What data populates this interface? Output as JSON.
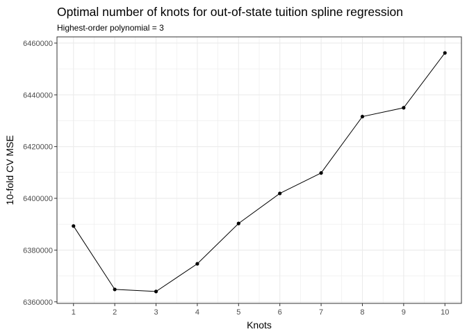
{
  "chart_data": {
    "type": "line",
    "title": "Optimal number of knots for out-of-state tuition spline regression",
    "subtitle": "Highest-order polynomial = 3",
    "xlabel": "Knots",
    "ylabel": "10-fold CV MSE",
    "x": [
      1,
      2,
      3,
      4,
      5,
      6,
      7,
      8,
      9,
      10
    ],
    "y": [
      6389300,
      6364800,
      6364000,
      6374700,
      6390300,
      6401900,
      6409800,
      6431600,
      6435000,
      6456200
    ],
    "xlim": [
      0.6,
      10.4
    ],
    "ylim": [
      6359400,
      6462400
    ],
    "xticks": [
      1,
      2,
      3,
      4,
      5,
      6,
      7,
      8,
      9,
      10
    ],
    "xtick_labels": [
      "1",
      "2",
      "3",
      "4",
      "5",
      "6",
      "7",
      "8",
      "9",
      "10"
    ],
    "yticks": [
      6360000,
      6380000,
      6400000,
      6420000,
      6440000,
      6460000
    ],
    "ytick_labels": [
      "6360000",
      "6380000",
      "6400000",
      "6420000",
      "6440000",
      "6460000"
    ],
    "grid": true,
    "legend": "none",
    "line_color": "#000000",
    "point_color": "#000000",
    "grid_color": "#ebebeb",
    "panel_border_color": "#333333"
  }
}
